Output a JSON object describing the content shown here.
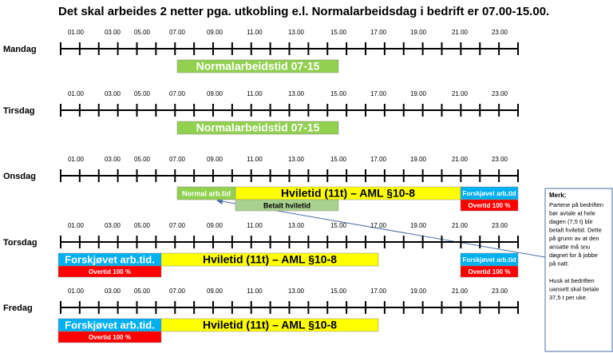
{
  "title": "Det skal arbeides 2 netter pga. utkobling e.l. Normalarbeidsdag i bedrift er 07.00-15.00.",
  "hours": [
    "01.00",
    "03.00",
    "05.00",
    "07.00",
    "09.00",
    "11.00",
    "13.00",
    "15.00",
    "17.00",
    "19.00",
    "21.00",
    "23.00"
  ],
  "days": [
    {
      "name": "Mandag",
      "blocks": [
        {
          "label": "Normalarbeidstid 07-15"
        }
      ]
    },
    {
      "name": "Tirsdag",
      "blocks": [
        {
          "label": "Normalarbeidstid 07-15"
        }
      ]
    },
    {
      "name": "Onsdag",
      "blocks": [
        {
          "label": "Normal arb.tid"
        },
        {
          "label": "Hviletid (11t) – AML §10-8"
        },
        {
          "label": "Forskjøvet arb.tid"
        },
        {
          "label": "Betalt hviletid"
        },
        {
          "label": "Overtid 100 %"
        }
      ]
    },
    {
      "name": "Torsdag",
      "blocks": [
        {
          "label": "Forskjøvet arb.tid."
        },
        {
          "label": "Hviletid (11t) – AML §10-8"
        },
        {
          "label": "Forskjøvet arb.tid"
        },
        {
          "label": "Overtid 100 %"
        },
        {
          "label": "Overtid 100 %"
        }
      ]
    },
    {
      "name": "Fredag",
      "blocks": [
        {
          "label": "Forskjøvet arb.tid."
        },
        {
          "label": "Hviletid (11t) – AML §10-8"
        },
        {
          "label": "Overtid 100 %"
        }
      ]
    }
  ],
  "note": {
    "heading": "Merk:",
    "paragraphs": [
      [
        "Partene på bedriften",
        "bør avtale at hele",
        "dagen (7,5 t) blir",
        "betalt hviletid. Dette",
        "på grunn av at den",
        "ansatte må snu",
        "døgnet for å jobbe",
        "på natt."
      ],
      [
        "Husk at bedriften",
        "uansett skal betale",
        "37,5 t per uke."
      ]
    ]
  }
}
